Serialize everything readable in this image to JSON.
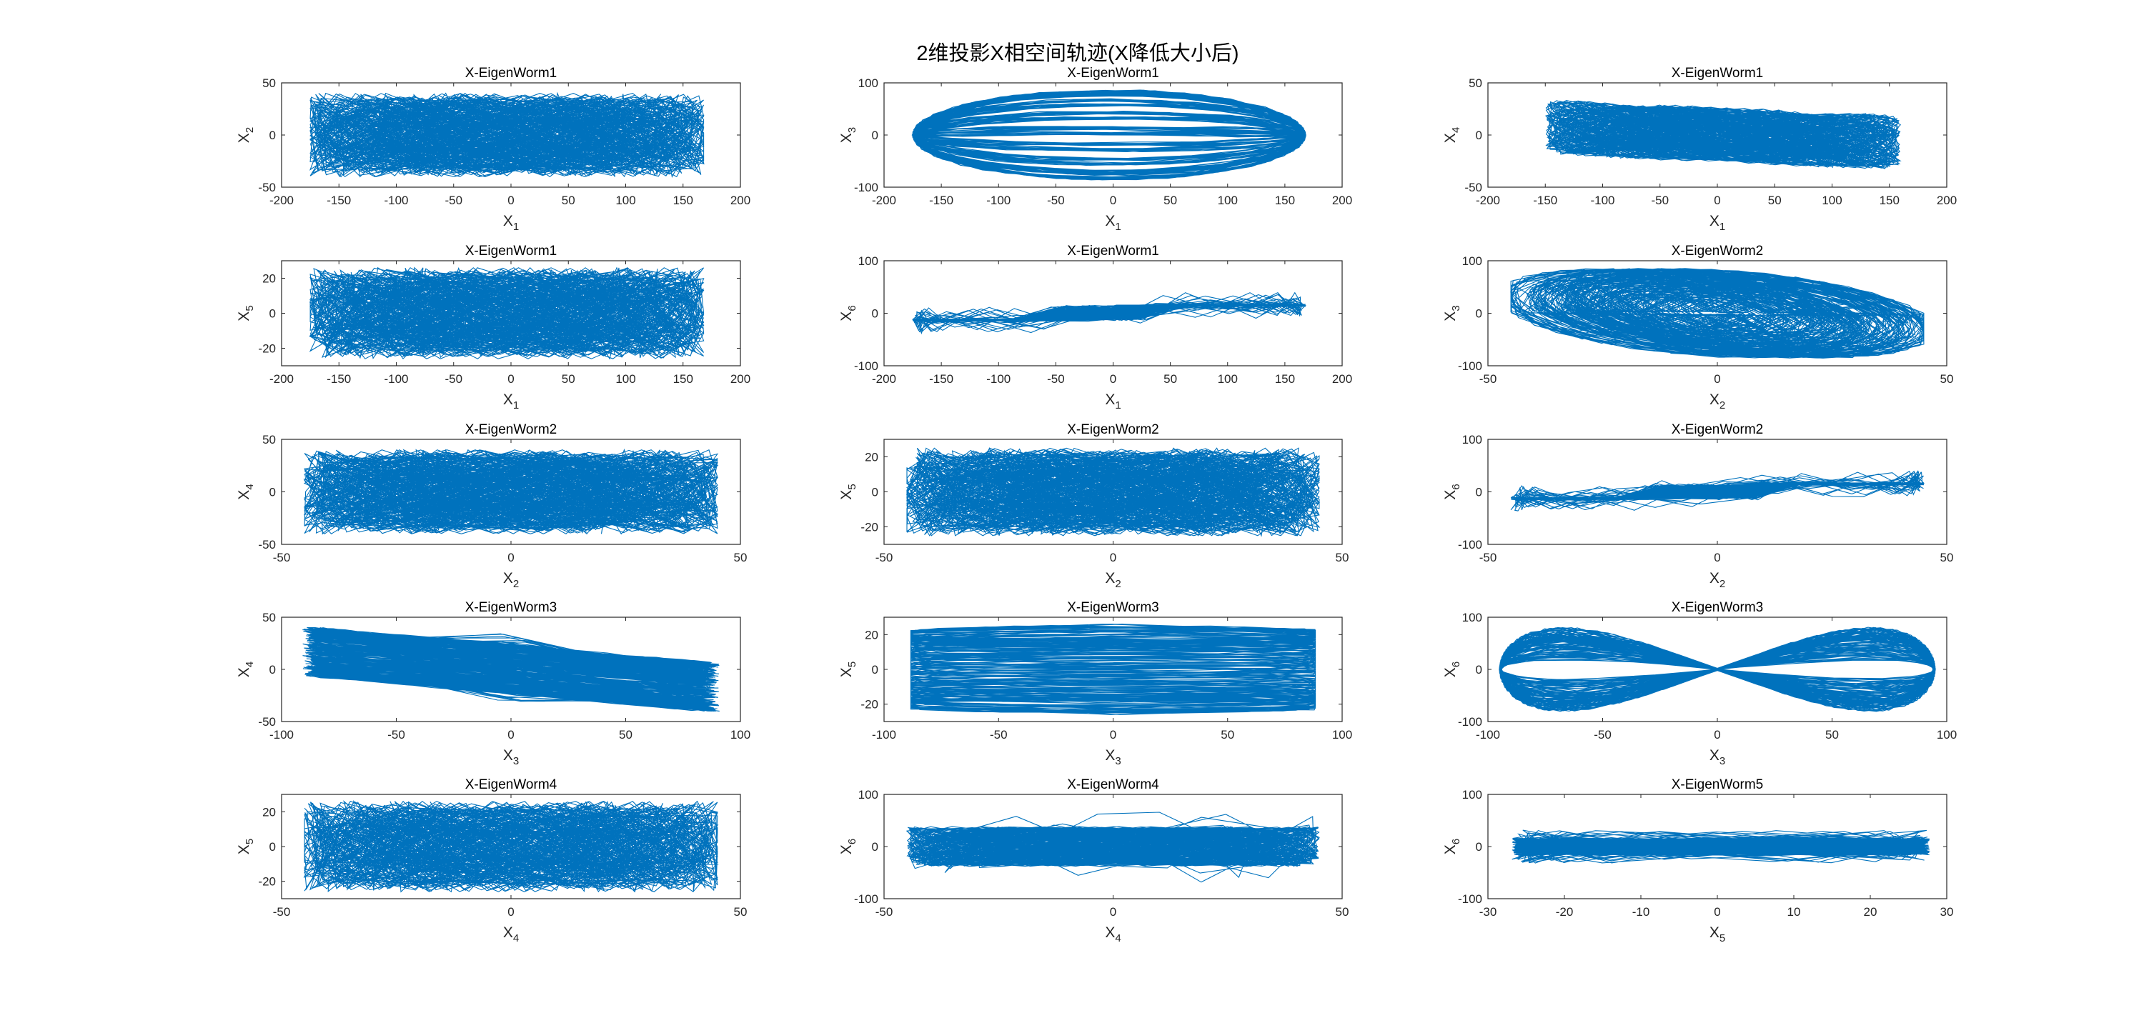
{
  "figure": {
    "title": "2维投影X相空间轨迹(X降低大小后)",
    "line_color": "#0072BD",
    "axis_color": "#262626"
  },
  "chart_data": [
    {
      "type": "line",
      "title": "X-EigenWorm1",
      "xlabel": {
        "base": "X",
        "sub": "1"
      },
      "ylabel": {
        "base": "X",
        "sub": "2"
      },
      "xlim": [
        -200,
        200
      ],
      "ylim": [
        -50,
        50
      ],
      "xticks": [
        -200,
        -150,
        -100,
        -50,
        0,
        50,
        100,
        150,
        200
      ],
      "yticks": [
        -50,
        0,
        50
      ],
      "series": [
        {
          "x_extent": [
            -175,
            168
          ],
          "y_extent": [
            -40,
            40
          ],
          "shape": "cloud"
        }
      ]
    },
    {
      "type": "line",
      "title": "X-EigenWorm1",
      "xlabel": {
        "base": "X",
        "sub": "1"
      },
      "ylabel": {
        "base": "X",
        "sub": "3"
      },
      "xlim": [
        -200,
        200
      ],
      "ylim": [
        -100,
        100
      ],
      "xticks": [
        -200,
        -150,
        -100,
        -50,
        0,
        50,
        100,
        150,
        200
      ],
      "yticks": [
        -100,
        0,
        100
      ],
      "series": [
        {
          "x_extent": [
            -175,
            168
          ],
          "y_extent": [
            -90,
            90
          ],
          "shape": "lens"
        }
      ]
    },
    {
      "type": "line",
      "title": "X-EigenWorm1",
      "xlabel": {
        "base": "X",
        "sub": "1"
      },
      "ylabel": {
        "base": "X",
        "sub": "4"
      },
      "xlim": [
        -200,
        200
      ],
      "ylim": [
        -50,
        50
      ],
      "xticks": [
        -200,
        -150,
        -100,
        -50,
        0,
        50,
        100,
        150,
        200
      ],
      "yticks": [
        -50,
        0,
        50
      ],
      "series": [
        {
          "x_extent": [
            -150,
            160
          ],
          "y_extent": [
            -38,
            38
          ],
          "shape": "tilted"
        }
      ]
    },
    {
      "type": "line",
      "title": "X-EigenWorm1",
      "xlabel": {
        "base": "X",
        "sub": "1"
      },
      "ylabel": {
        "base": "X",
        "sub": "5"
      },
      "xlim": [
        -200,
        200
      ],
      "ylim": [
        -30,
        30
      ],
      "xticks": [
        -200,
        -150,
        -100,
        -50,
        0,
        50,
        100,
        150,
        200
      ],
      "yticks": [
        -20,
        0,
        20
      ],
      "series": [
        {
          "x_extent": [
            -175,
            168
          ],
          "y_extent": [
            -26,
            26
          ],
          "shape": "cloud"
        }
      ]
    },
    {
      "type": "line",
      "title": "X-EigenWorm1",
      "xlabel": {
        "base": "X",
        "sub": "1"
      },
      "ylabel": {
        "base": "X",
        "sub": "6"
      },
      "xlim": [
        -200,
        200
      ],
      "ylim": [
        -100,
        100
      ],
      "xticks": [
        -200,
        -150,
        -100,
        -50,
        0,
        50,
        100,
        150,
        200
      ],
      "yticks": [
        -100,
        0,
        100
      ],
      "series": [
        {
          "x_extent": [
            -175,
            168
          ],
          "y_extent": [
            -40,
            40
          ],
          "shape": "bands"
        }
      ]
    },
    {
      "type": "line",
      "title": "X-EigenWorm2",
      "xlabel": {
        "base": "X",
        "sub": "2"
      },
      "ylabel": {
        "base": "X",
        "sub": "3"
      },
      "xlim": [
        -50,
        50
      ],
      "ylim": [
        -100,
        100
      ],
      "xticks": [
        -50,
        0,
        50
      ],
      "yticks": [
        -100,
        0,
        100
      ],
      "series": [
        {
          "x_extent": [
            -45,
            45
          ],
          "y_extent": [
            -90,
            90
          ],
          "shape": "loops"
        }
      ]
    },
    {
      "type": "line",
      "title": "X-EigenWorm2",
      "xlabel": {
        "base": "X",
        "sub": "2"
      },
      "ylabel": {
        "base": "X",
        "sub": "4"
      },
      "xlim": [
        -50,
        50
      ],
      "ylim": [
        -50,
        50
      ],
      "xticks": [
        -50,
        0,
        50
      ],
      "yticks": [
        -50,
        0,
        50
      ],
      "series": [
        {
          "x_extent": [
            -45,
            45
          ],
          "y_extent": [
            -40,
            40
          ],
          "shape": "cloud"
        }
      ]
    },
    {
      "type": "line",
      "title": "X-EigenWorm2",
      "xlabel": {
        "base": "X",
        "sub": "2"
      },
      "ylabel": {
        "base": "X",
        "sub": "5"
      },
      "xlim": [
        -50,
        50
      ],
      "ylim": [
        -30,
        30
      ],
      "xticks": [
        -50,
        0,
        50
      ],
      "yticks": [
        -20,
        0,
        20
      ],
      "series": [
        {
          "x_extent": [
            -45,
            45
          ],
          "y_extent": [
            -25,
            25
          ],
          "shape": "cloud"
        }
      ]
    },
    {
      "type": "line",
      "title": "X-EigenWorm2",
      "xlabel": {
        "base": "X",
        "sub": "2"
      },
      "ylabel": {
        "base": "X",
        "sub": "6"
      },
      "xlim": [
        -50,
        50
      ],
      "ylim": [
        -100,
        100
      ],
      "xticks": [
        -50,
        0,
        50
      ],
      "yticks": [
        -100,
        0,
        100
      ],
      "series": [
        {
          "x_extent": [
            -45,
            45
          ],
          "y_extent": [
            -40,
            40
          ],
          "shape": "bands"
        }
      ]
    },
    {
      "type": "line",
      "title": "X-EigenWorm3",
      "xlabel": {
        "base": "X",
        "sub": "3"
      },
      "ylabel": {
        "base": "X",
        "sub": "4"
      },
      "xlim": [
        -100,
        100
      ],
      "ylim": [
        -50,
        50
      ],
      "xticks": [
        -100,
        -50,
        0,
        50,
        100
      ],
      "yticks": [
        -50,
        0,
        50
      ],
      "series": [
        {
          "x_extent": [
            -92,
            92
          ],
          "y_extent": [
            -40,
            40
          ],
          "shape": "diagonal"
        }
      ]
    },
    {
      "type": "line",
      "title": "X-EigenWorm3",
      "xlabel": {
        "base": "X",
        "sub": "3"
      },
      "ylabel": {
        "base": "X",
        "sub": "5"
      },
      "xlim": [
        -100,
        100
      ],
      "ylim": [
        -30,
        30
      ],
      "xticks": [
        -100,
        -50,
        0,
        50,
        100
      ],
      "yticks": [
        -20,
        0,
        20
      ],
      "series": [
        {
          "x_extent": [
            -92,
            92
          ],
          "y_extent": [
            -26,
            26
          ],
          "shape": "rect"
        }
      ]
    },
    {
      "type": "line",
      "title": "X-EigenWorm3",
      "xlabel": {
        "base": "X",
        "sub": "3"
      },
      "ylabel": {
        "base": "X",
        "sub": "6"
      },
      "xlim": [
        -100,
        100
      ],
      "ylim": [
        -100,
        100
      ],
      "xticks": [
        -100,
        -50,
        0,
        50,
        100
      ],
      "yticks": [
        -100,
        0,
        100
      ],
      "series": [
        {
          "x_extent": [
            -100,
            100
          ],
          "y_extent": [
            -85,
            85
          ],
          "shape": "figure8"
        }
      ]
    },
    {
      "type": "line",
      "title": "X-EigenWorm4",
      "xlabel": {
        "base": "X",
        "sub": "4"
      },
      "ylabel": {
        "base": "X",
        "sub": "5"
      },
      "xlim": [
        -50,
        50
      ],
      "ylim": [
        -30,
        30
      ],
      "xticks": [
        -50,
        0,
        50
      ],
      "yticks": [
        -20,
        0,
        20
      ],
      "series": [
        {
          "x_extent": [
            -45,
            45
          ],
          "y_extent": [
            -26,
            26
          ],
          "shape": "cloud"
        }
      ]
    },
    {
      "type": "line",
      "title": "X-EigenWorm4",
      "xlabel": {
        "base": "X",
        "sub": "4"
      },
      "ylabel": {
        "base": "X",
        "sub": "6"
      },
      "xlim": [
        -50,
        50
      ],
      "ylim": [
        -100,
        100
      ],
      "xticks": [
        -50,
        0,
        50
      ],
      "yticks": [
        -100,
        0,
        100
      ],
      "series": [
        {
          "x_extent": [
            -45,
            45
          ],
          "y_extent": [
            -85,
            85
          ],
          "shape": "flatloops"
        }
      ]
    },
    {
      "type": "line",
      "title": "X-EigenWorm5",
      "xlabel": {
        "base": "X",
        "sub": "5"
      },
      "ylabel": {
        "base": "X",
        "sub": "6"
      },
      "xlim": [
        -30,
        30
      ],
      "ylim": [
        -100,
        100
      ],
      "xticks": [
        -30,
        -20,
        -10,
        0,
        10,
        20,
        30
      ],
      "yticks": [
        -100,
        0,
        100
      ],
      "series": [
        {
          "x_extent": [
            -27,
            28
          ],
          "y_extent": [
            -40,
            40
          ],
          "shape": "zigzag"
        }
      ]
    }
  ]
}
